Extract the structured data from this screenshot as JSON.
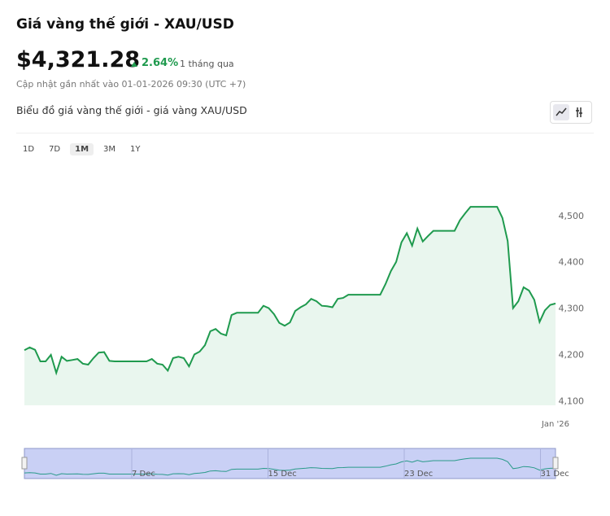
{
  "header": {
    "title": "Giá vàng thế giới - XAU/USD",
    "price": "$4,321.28",
    "change": "2.64%",
    "period": "1 tháng qua",
    "updated": "Cập nhật gần nhất vào 01-01-2026 09:30 (UTC +7)"
  },
  "chart_heading": "Biểu đồ giá vàng thế giới - giá vàng XAU/USD",
  "ranges": [
    "1D",
    "7D",
    "1M",
    "3M",
    "1Y"
  ],
  "active_range": "1M",
  "chart_data": {
    "type": "line",
    "color": "#1f9a4e",
    "fill": "#e9f6ee",
    "categories": [
      null,
      null,
      null,
      null,
      null,
      null,
      null,
      null,
      null,
      null,
      null,
      null,
      null,
      null,
      null,
      null,
      null,
      null,
      null,
      null,
      null,
      null,
      null,
      null,
      null,
      null,
      null,
      null,
      null,
      null,
      null,
      null,
      null,
      null,
      null,
      null,
      null,
      null,
      null,
      null,
      null,
      null,
      null,
      null,
      null,
      null,
      null,
      null,
      null,
      null,
      null,
      null,
      null,
      null,
      null,
      null,
      null,
      null,
      null,
      null,
      null,
      null,
      null,
      null,
      null,
      null,
      null,
      null,
      null,
      null,
      null,
      null,
      null,
      null,
      null,
      null,
      null,
      null,
      null,
      null,
      null,
      null,
      null,
      null,
      null,
      null,
      null,
      null,
      null,
      null,
      null,
      null,
      null,
      null,
      null,
      null,
      null,
      null,
      null,
      null,
      "Jan '26"
    ],
    "values": [
      4209,
      4215,
      4210,
      4185,
      4185,
      4199,
      4160,
      4195,
      4186,
      4188,
      4190,
      4180,
      4178,
      4192,
      4204,
      4205,
      4186,
      4185,
      4185,
      4185,
      4185,
      4185,
      4185,
      4185,
      4190,
      4180,
      4178,
      4165,
      4192,
      4195,
      4192,
      4174,
      4200,
      4206,
      4220,
      4250,
      4255,
      4245,
      4241,
      4285,
      4290,
      4290,
      4290,
      4290,
      4290,
      4305,
      4300,
      4287,
      4268,
      4262,
      4269,
      4294,
      4302,
      4308,
      4320,
      4315,
      4305,
      4304,
      4302,
      4320,
      4322,
      4329,
      4329,
      4329,
      4329,
      4329,
      4329,
      4329,
      4352,
      4380,
      4400,
      4442,
      4462,
      4435,
      4472,
      4444,
      4456,
      4467,
      4467,
      4467,
      4467,
      4467,
      4490,
      4505,
      4519,
      4519,
      4519,
      4519,
      4519,
      4519,
      4495,
      4445,
      4300,
      4315,
      4345,
      4338,
      4318,
      4270,
      4295,
      4307,
      4310
    ],
    "ylim": [
      4090,
      4600
    ],
    "yticks": [
      {
        "value": 4100,
        "label": "4,100"
      },
      {
        "value": 4200,
        "label": "4,200"
      },
      {
        "value": 4300,
        "label": "4,300"
      },
      {
        "value": 4400,
        "label": "4,400"
      },
      {
        "value": 4500,
        "label": "4,500"
      }
    ]
  },
  "navigator": {
    "labels": [
      "7 Dec",
      "15 Dec",
      "23 Dec",
      "31 Dec"
    ]
  }
}
